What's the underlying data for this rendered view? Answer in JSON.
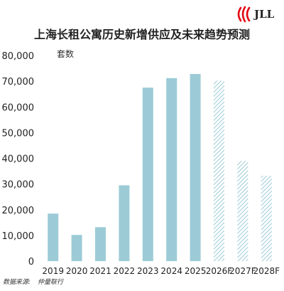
{
  "brand": {
    "logo_text": "JLL",
    "logo_color": "#e30613"
  },
  "chart_data": {
    "type": "bar",
    "title": "上海长租公寓历史新增供应及未来趋势预测",
    "unit_label": "套数",
    "categories": [
      "2019",
      "2020",
      "2021",
      "2022",
      "2023",
      "2024",
      "2025",
      "2026F",
      "2027F",
      "2028F"
    ],
    "values": [
      18500,
      10200,
      13200,
      29500,
      67500,
      71200,
      72800,
      70200,
      39000,
      33200
    ],
    "forecast": [
      false,
      false,
      false,
      false,
      false,
      false,
      false,
      true,
      true,
      true
    ],
    "ylim": [
      0,
      80000
    ],
    "yticks": [
      "0",
      "10,000",
      "20,000",
      "30,000",
      "40,000",
      "50,000",
      "60,000",
      "70,000",
      "80,000"
    ],
    "ytick_values": [
      0,
      10000,
      20000,
      30000,
      40000,
      50000,
      60000,
      70000,
      80000
    ],
    "grid": false,
    "bar_color": "#9ccbd6",
    "forecast_hatch_color": "#9ccbd6"
  },
  "source": {
    "label": "数据来源:",
    "value": "仲量联行"
  }
}
